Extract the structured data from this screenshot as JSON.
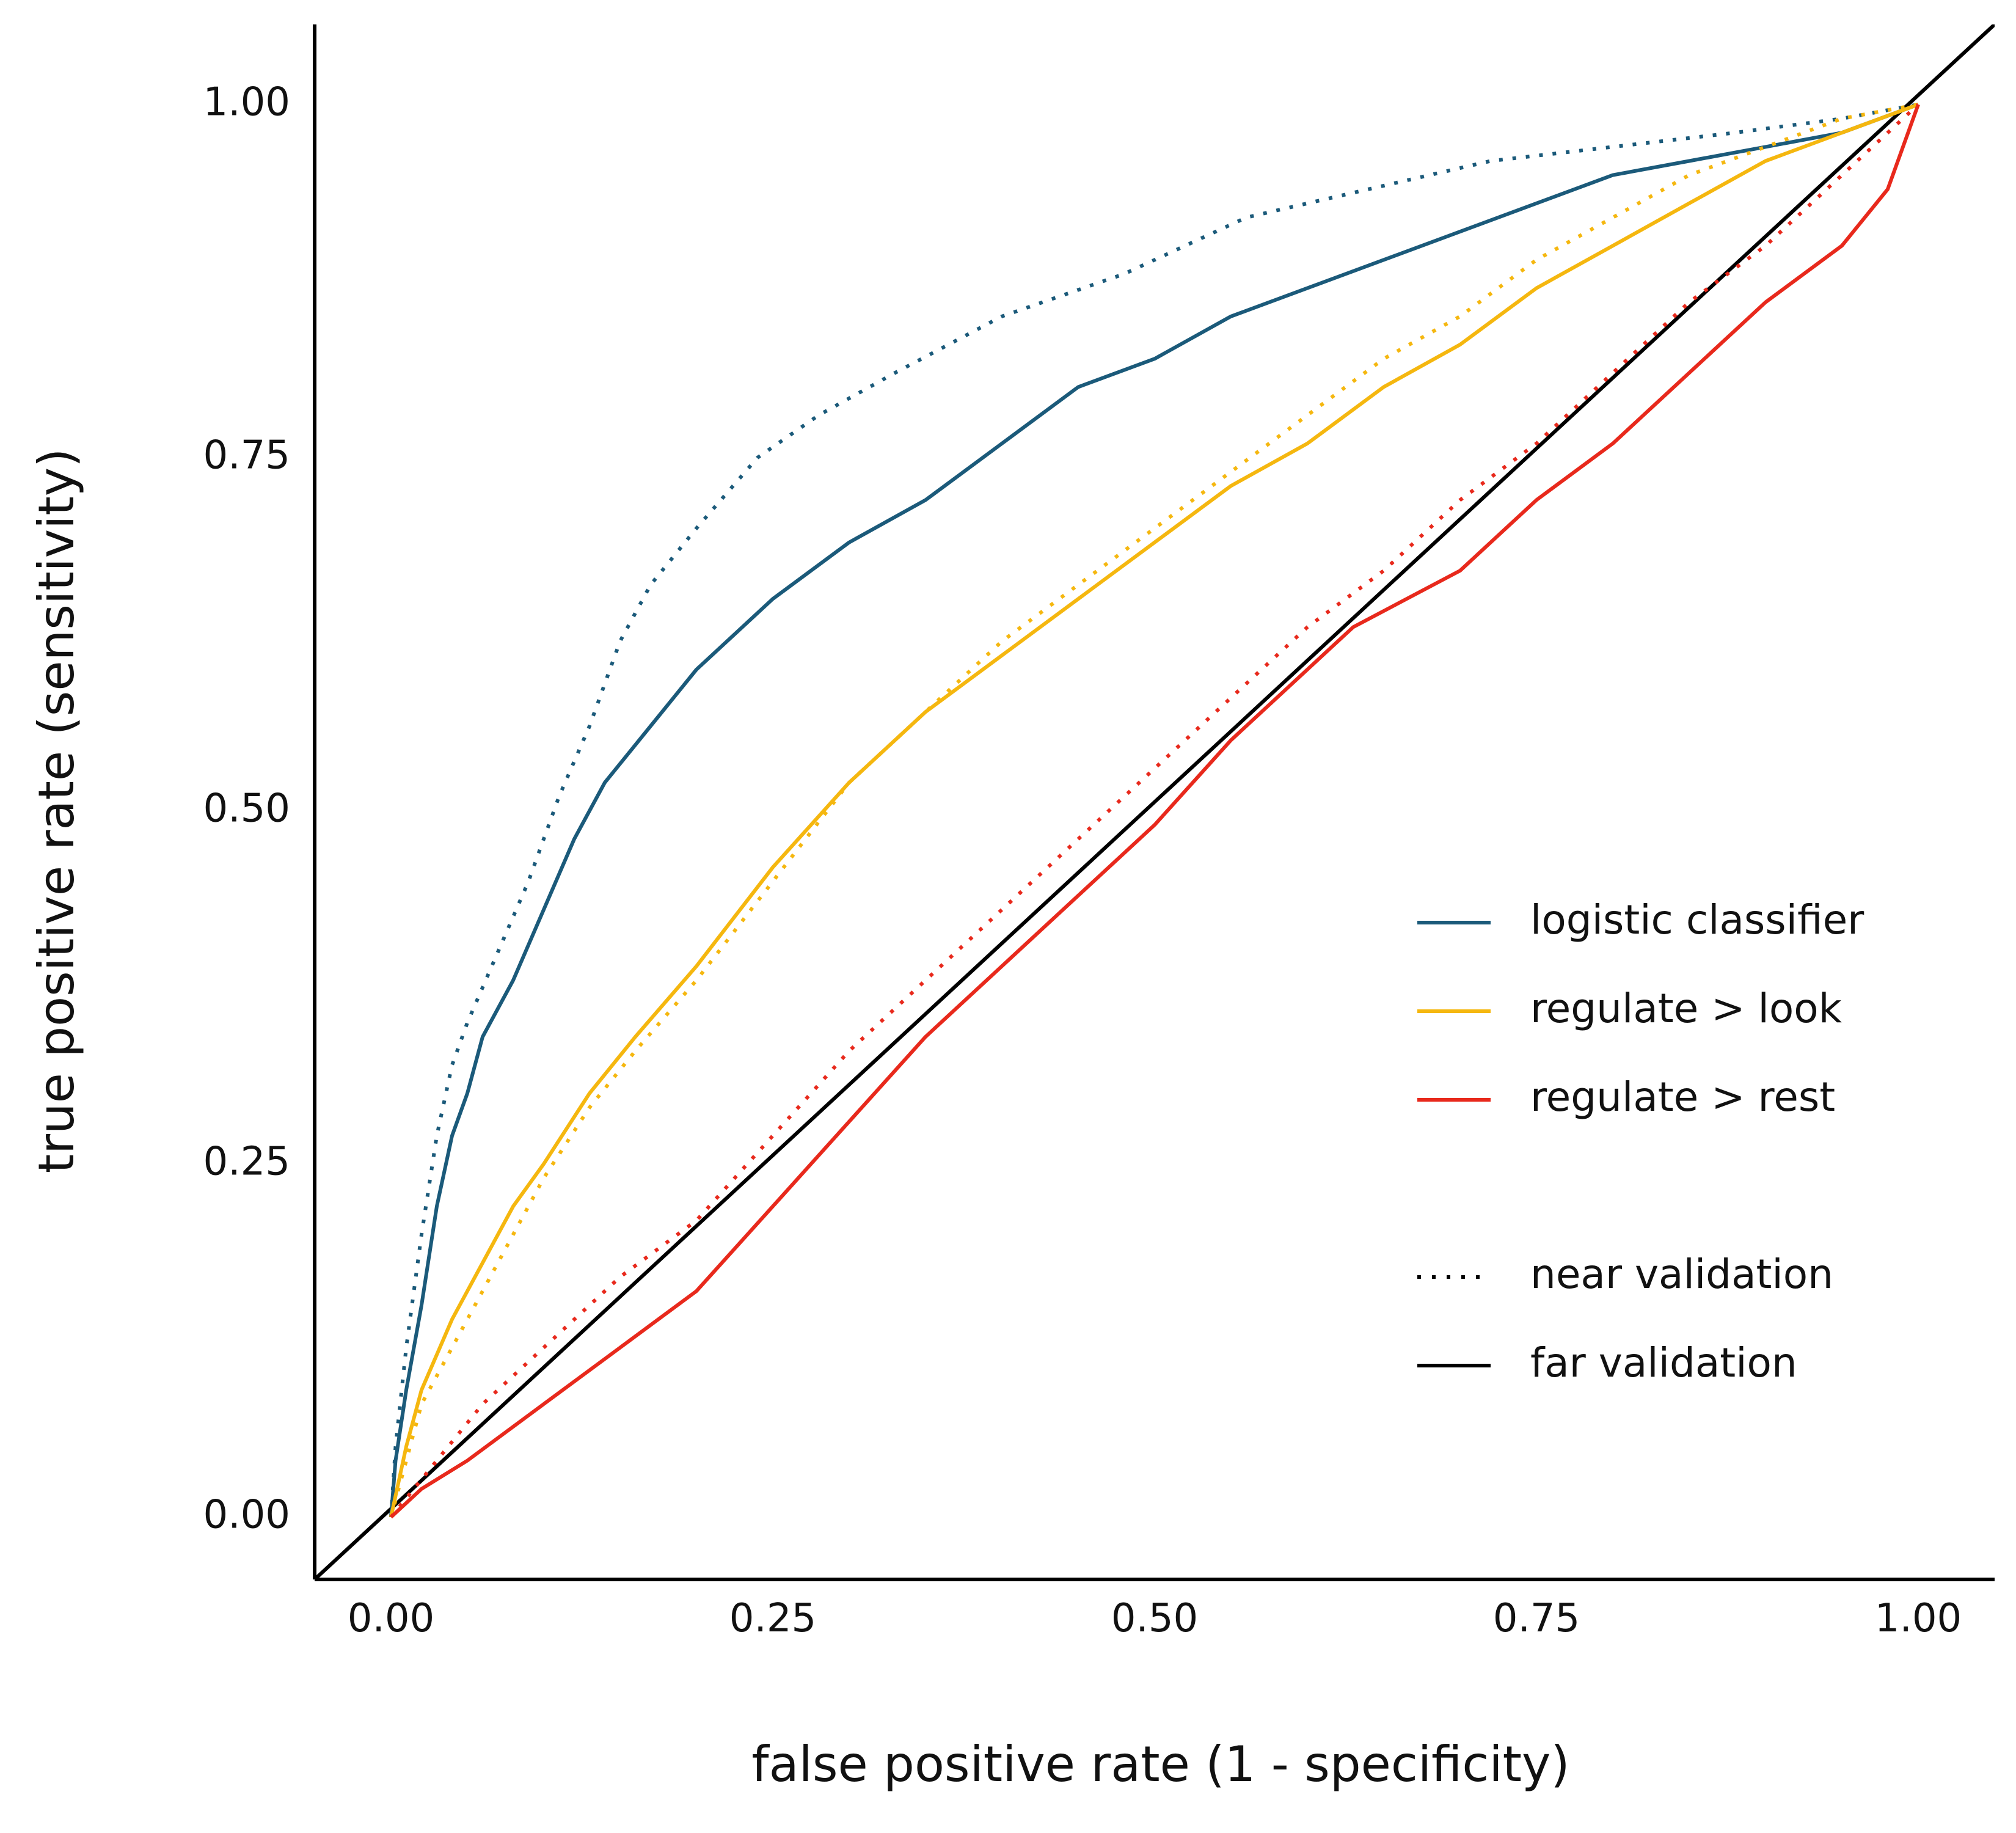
{
  "chart_data": {
    "type": "line",
    "title": "",
    "xlabel": "false positive rate (1 - specificity)",
    "ylabel": "true positive rate (sensitivity)",
    "xlim": [
      -0.05,
      1.05
    ],
    "ylim": [
      -0.05,
      1.05
    ],
    "x_ticks": [
      0,
      0.25,
      0.5,
      0.75,
      1
    ],
    "y_ticks": [
      0,
      0.25,
      0.5,
      0.75,
      1
    ],
    "x_tick_labels": [
      "0.00",
      "0.25",
      "0.50",
      "0.75",
      "1.00"
    ],
    "y_tick_labels": [
      "0.00",
      "0.25",
      "0.50",
      "0.75",
      "1.00"
    ],
    "grid": false,
    "legend_position": "right",
    "legend": {
      "colors": [
        {
          "label": "logistic classifier",
          "color": "#1b5a7a"
        },
        {
          "label": "regulate > look",
          "color": "#f5b70f"
        },
        {
          "label": "regulate > rest",
          "color": "#e8291c"
        }
      ],
      "linetypes": [
        {
          "label": "near validation",
          "style": "dotted"
        },
        {
          "label": "far validation",
          "style": "solid"
        }
      ]
    },
    "reference_line": {
      "x": [
        -0.05,
        1.05
      ],
      "y": [
        -0.05,
        1.05
      ],
      "color": "#000000"
    },
    "series": [
      {
        "group": "logistic classifier",
        "validation": "near validation",
        "color": "#1b5a7a",
        "style": "dotted",
        "x": [
          0,
          0.003,
          0.01,
          0.02,
          0.03,
          0.04,
          0.05,
          0.07,
          0.09,
          0.11,
          0.13,
          0.15,
          0.17,
          0.2,
          0.24,
          0.28,
          0.33,
          0.4,
          0.48,
          0.56,
          0.64,
          0.72,
          0.8,
          0.88,
          0.95,
          1
        ],
        "y": [
          0,
          0.05,
          0.12,
          0.2,
          0.27,
          0.32,
          0.35,
          0.4,
          0.45,
          0.51,
          0.56,
          0.62,
          0.66,
          0.7,
          0.75,
          0.78,
          0.81,
          0.85,
          0.88,
          0.92,
          0.94,
          0.96,
          0.97,
          0.98,
          0.99,
          1
        ]
      },
      {
        "group": "logistic classifier",
        "validation": "far validation",
        "color": "#1b5a7a",
        "style": "solid",
        "x": [
          0,
          0.003,
          0.01,
          0.02,
          0.03,
          0.04,
          0.05,
          0.06,
          0.07,
          0.08,
          0.1,
          0.12,
          0.14,
          0.17,
          0.2,
          0.25,
          0.3,
          0.35,
          0.4,
          0.45,
          0.5,
          0.55,
          0.6,
          0.65,
          0.7,
          0.75,
          0.8,
          0.85,
          0.9,
          0.95,
          1
        ],
        "y": [
          0,
          0.04,
          0.09,
          0.15,
          0.22,
          0.27,
          0.3,
          0.34,
          0.36,
          0.38,
          0.43,
          0.48,
          0.52,
          0.56,
          0.6,
          0.65,
          0.69,
          0.72,
          0.76,
          0.8,
          0.82,
          0.85,
          0.87,
          0.89,
          0.91,
          0.93,
          0.95,
          0.96,
          0.97,
          0.98,
          1
        ]
      },
      {
        "group": "regulate > look",
        "validation": "near validation",
        "color": "#f5b70f",
        "style": "dotted",
        "x": [
          0,
          0.01,
          0.02,
          0.04,
          0.06,
          0.08,
          0.1,
          0.13,
          0.16,
          0.2,
          0.25,
          0.3,
          0.35,
          0.4,
          0.45,
          0.5,
          0.55,
          0.6,
          0.65,
          0.7,
          0.75,
          0.8,
          0.85,
          0.9,
          0.95,
          1
        ],
        "y": [
          0,
          0.04,
          0.08,
          0.12,
          0.16,
          0.2,
          0.24,
          0.29,
          0.33,
          0.38,
          0.45,
          0.52,
          0.57,
          0.62,
          0.66,
          0.7,
          0.74,
          0.78,
          0.82,
          0.85,
          0.89,
          0.92,
          0.95,
          0.97,
          0.99,
          1
        ]
      },
      {
        "group": "regulate > look",
        "validation": "far validation",
        "color": "#f5b70f",
        "style": "solid",
        "x": [
          0,
          0.01,
          0.02,
          0.04,
          0.06,
          0.08,
          0.1,
          0.13,
          0.16,
          0.2,
          0.25,
          0.3,
          0.35,
          0.4,
          0.45,
          0.5,
          0.55,
          0.6,
          0.65,
          0.7,
          0.75,
          0.8,
          0.85,
          0.9,
          0.95,
          1
        ],
        "y": [
          0,
          0.05,
          0.09,
          0.14,
          0.18,
          0.22,
          0.25,
          0.3,
          0.34,
          0.39,
          0.46,
          0.52,
          0.57,
          0.61,
          0.65,
          0.69,
          0.73,
          0.76,
          0.8,
          0.83,
          0.87,
          0.9,
          0.93,
          0.96,
          0.98,
          1
        ]
      },
      {
        "group": "regulate > rest",
        "validation": "near validation",
        "color": "#e8291c",
        "style": "dotted",
        "x": [
          0,
          0.03,
          0.06,
          0.1,
          0.15,
          0.2,
          0.25,
          0.3,
          0.35,
          0.4,
          0.45,
          0.5,
          0.55,
          0.6,
          0.65,
          0.7,
          0.75,
          0.8,
          0.85,
          0.9,
          0.95,
          1
        ],
        "y": [
          0,
          0.04,
          0.08,
          0.12,
          0.17,
          0.21,
          0.27,
          0.33,
          0.38,
          0.43,
          0.48,
          0.53,
          0.58,
          0.63,
          0.67,
          0.72,
          0.76,
          0.81,
          0.86,
          0.9,
          0.95,
          1
        ]
      },
      {
        "group": "regulate > rest",
        "validation": "far validation",
        "color": "#e8291c",
        "style": "solid",
        "x": [
          0,
          0.02,
          0.05,
          0.1,
          0.15,
          0.2,
          0.25,
          0.3,
          0.35,
          0.4,
          0.45,
          0.5,
          0.55,
          0.6,
          0.63,
          0.7,
          0.75,
          0.8,
          0.85,
          0.9,
          0.95,
          0.98,
          1
        ],
        "y": [
          0,
          0.02,
          0.04,
          0.08,
          0.12,
          0.16,
          0.22,
          0.28,
          0.34,
          0.39,
          0.44,
          0.49,
          0.55,
          0.6,
          0.63,
          0.67,
          0.72,
          0.76,
          0.81,
          0.86,
          0.9,
          0.94,
          1
        ]
      }
    ]
  }
}
